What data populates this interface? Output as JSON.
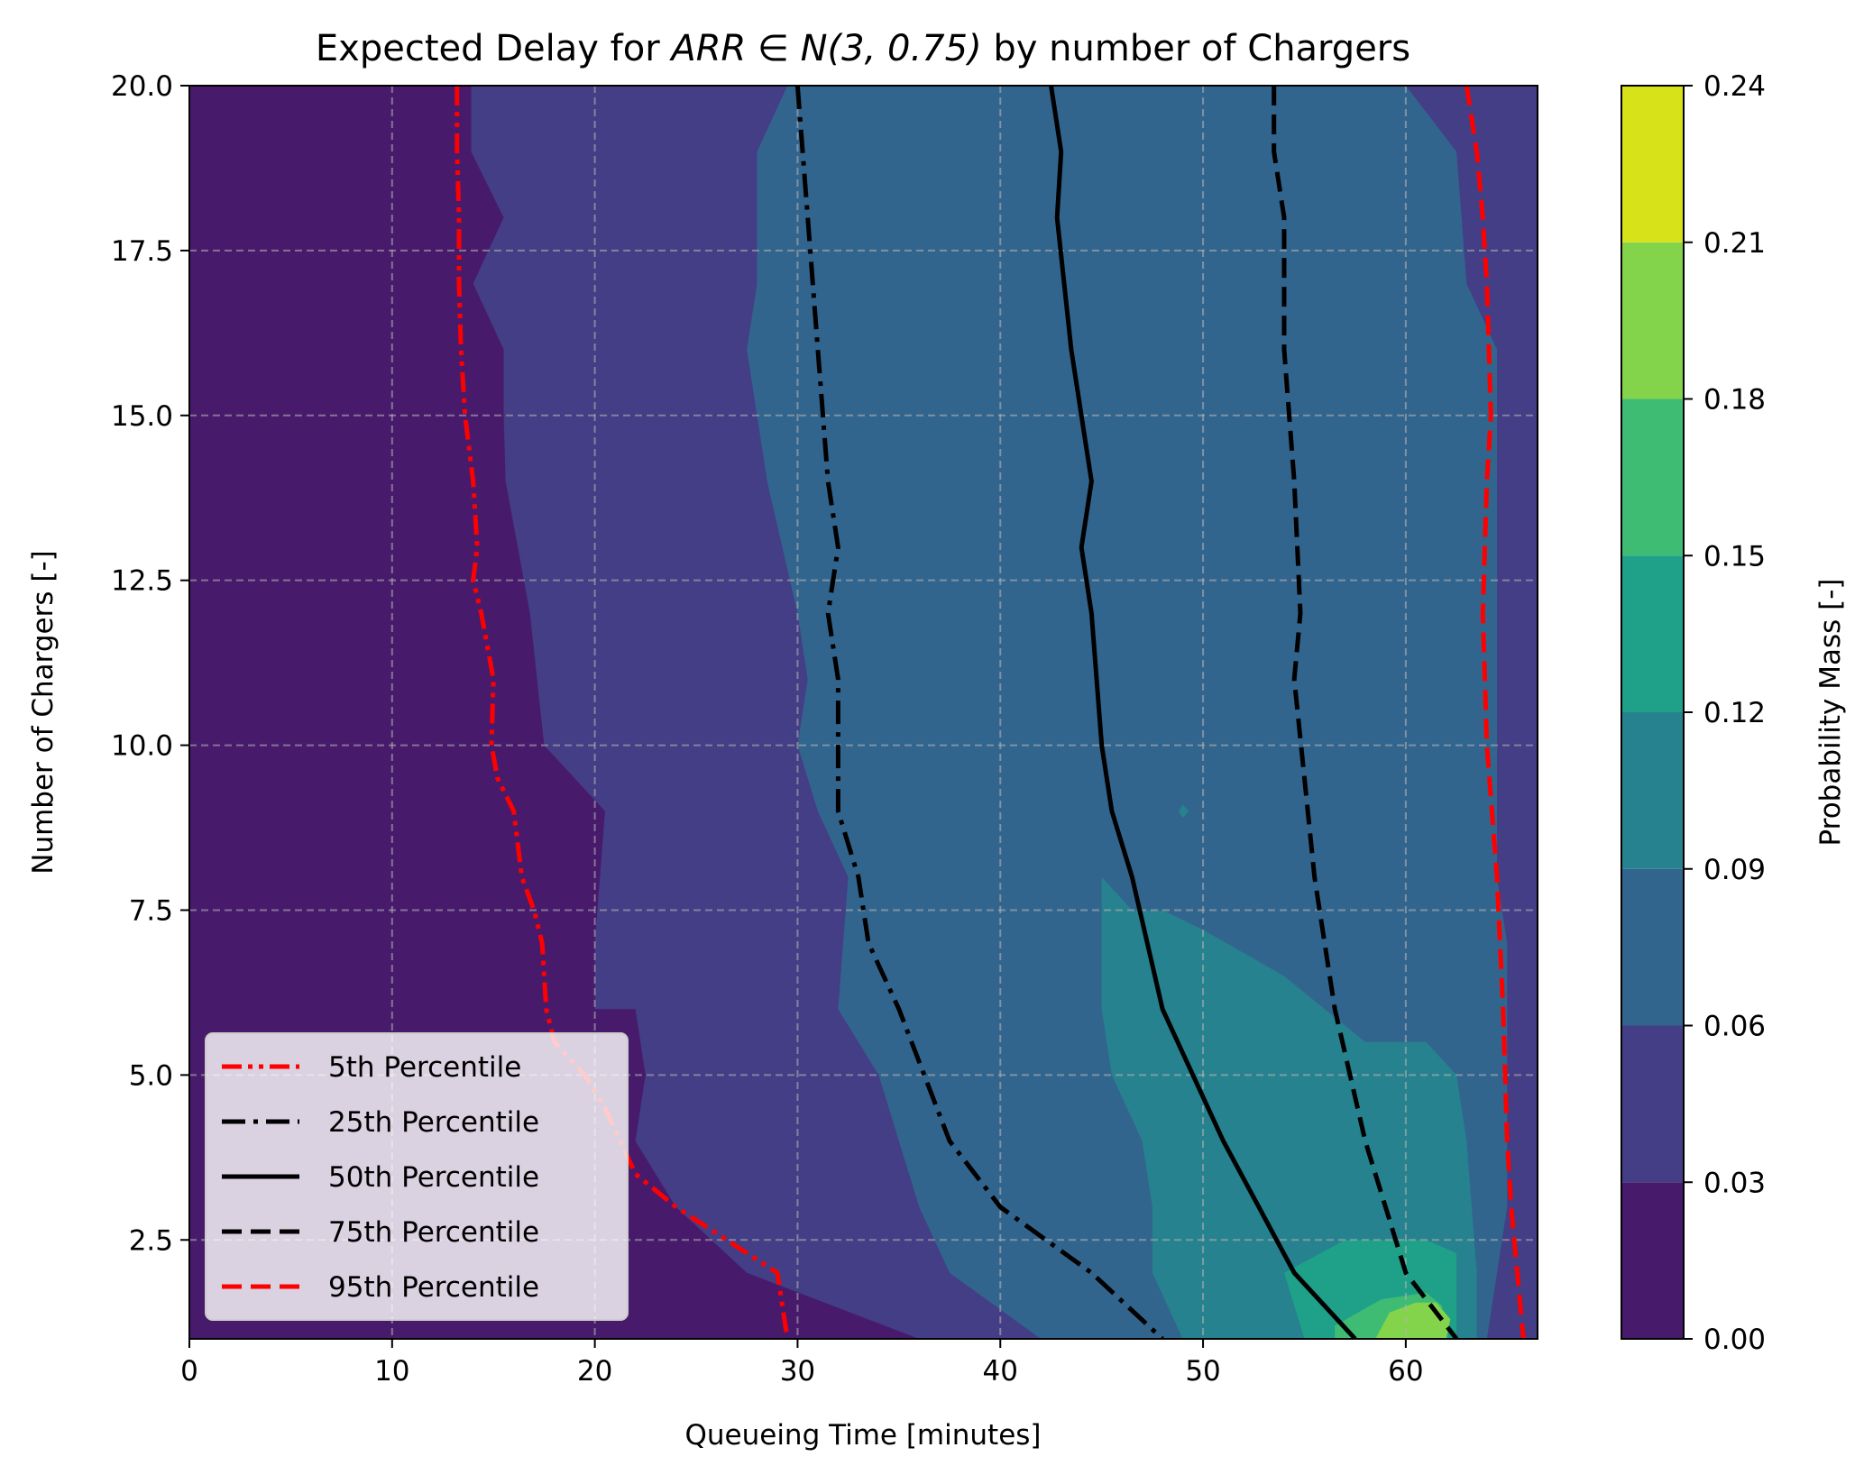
{
  "chart_data": {
    "type": "contour",
    "title_plain": "Expected Delay for ",
    "title_math": "ARR ∈ N(3, 0.75)",
    "title_suffix": " by number of Chargers",
    "xlabel": "Queueing Time [minutes]",
    "ylabel": "Number of Chargers [-]",
    "colorbar_label": "Probability Mass [-]",
    "xlim": [
      0,
      66.5
    ],
    "ylim": [
      1,
      20
    ],
    "xticks": [
      0,
      10,
      20,
      30,
      40,
      50,
      60
    ],
    "xtick_labels": [
      "0",
      "10",
      "20",
      "30",
      "40",
      "50",
      "60"
    ],
    "yticks": [
      2.5,
      5.0,
      7.5,
      10.0,
      12.5,
      15.0,
      17.5,
      20.0
    ],
    "ytick_labels": [
      "2.5",
      "5.0",
      "7.5",
      "10.0",
      "12.5",
      "15.0",
      "17.5",
      "20.0"
    ],
    "colorbar_ticks": [
      0.0,
      0.03,
      0.06,
      0.09,
      0.12,
      0.15,
      0.18,
      0.21,
      0.24
    ],
    "colorbar_tick_labels": [
      "0.00",
      "0.03",
      "0.06",
      "0.09",
      "0.12",
      "0.15",
      "0.18",
      "0.21",
      "0.24"
    ],
    "levels": [
      0.0,
      0.03,
      0.06,
      0.09,
      0.12,
      0.15,
      0.18,
      0.21,
      0.24
    ],
    "level_colors": [
      "#481a6c",
      "#433e85",
      "#32658e",
      "#26828e",
      "#1fa088",
      "#3fbc73",
      "#84d44b",
      "#d8e219"
    ],
    "grid": true,
    "legend_position": "lower-left",
    "regions": [
      {
        "level": 1,
        "points": [
          [
            13.9,
            20
          ],
          [
            13.9,
            19
          ],
          [
            15.5,
            18
          ],
          [
            14,
            17
          ],
          [
            15.5,
            16
          ],
          [
            15.5,
            15
          ],
          [
            15.6,
            14
          ],
          [
            16.8,
            12
          ],
          [
            17.5,
            10
          ],
          [
            20.5,
            9
          ],
          [
            20,
            7
          ],
          [
            20,
            6
          ],
          [
            22,
            6
          ],
          [
            22.5,
            5
          ],
          [
            22,
            4
          ],
          [
            24,
            3
          ],
          [
            27.5,
            2
          ],
          [
            36,
            1
          ],
          [
            66.5,
            1
          ],
          [
            66.5,
            20
          ]
        ]
      },
      {
        "level": 2,
        "points": [
          [
            29.5,
            20
          ],
          [
            28,
            19
          ],
          [
            28,
            17
          ],
          [
            27.5,
            16
          ],
          [
            28,
            15
          ],
          [
            28.5,
            14
          ],
          [
            30,
            12
          ],
          [
            30.5,
            11
          ],
          [
            30,
            10
          ],
          [
            31,
            9
          ],
          [
            32.5,
            8
          ],
          [
            32,
            6
          ],
          [
            34,
            5
          ],
          [
            35,
            4
          ],
          [
            36,
            3
          ],
          [
            37.5,
            2
          ],
          [
            42,
            1
          ],
          [
            64,
            1
          ],
          [
            65,
            3
          ],
          [
            65,
            7
          ],
          [
            64.5,
            8
          ],
          [
            64.5,
            13
          ],
          [
            64.5,
            16
          ],
          [
            63,
            17
          ],
          [
            62.5,
            19
          ],
          [
            60,
            20
          ]
        ]
      },
      {
        "level": 3,
        "points": [
          [
            45,
            8
          ],
          [
            46.5,
            7.5
          ],
          [
            48,
            7.5
          ],
          [
            50,
            7.2
          ],
          [
            54,
            6.5
          ],
          [
            58,
            5.5
          ],
          [
            61,
            5.5
          ],
          [
            62.5,
            5
          ],
          [
            63,
            4
          ],
          [
            63.5,
            2
          ],
          [
            63.5,
            1
          ],
          [
            49,
            1
          ],
          [
            47.5,
            2
          ],
          [
            47.5,
            3
          ],
          [
            47,
            4
          ],
          [
            45.5,
            5
          ],
          [
            45,
            6
          ]
        ]
      },
      {
        "level": 3,
        "points": [
          [
            48.8,
            9
          ],
          [
            49,
            9.1
          ],
          [
            49.3,
            9
          ],
          [
            49,
            8.9
          ]
        ]
      },
      {
        "level": 4,
        "points": [
          [
            54,
            2
          ],
          [
            57,
            2.5
          ],
          [
            61,
            2.5
          ],
          [
            62.5,
            2.3
          ],
          [
            62.5,
            1
          ],
          [
            55,
            1
          ]
        ]
      },
      {
        "level": 5,
        "points": [
          [
            56.5,
            1.2
          ],
          [
            58.8,
            1.6
          ],
          [
            61,
            1.7
          ],
          [
            61.8,
            1.5
          ],
          [
            61.8,
            1
          ],
          [
            56.5,
            1
          ]
        ]
      },
      {
        "level": 6,
        "points": [
          [
            58.5,
            1
          ],
          [
            59.2,
            1.4
          ],
          [
            60.5,
            1.55
          ],
          [
            61.5,
            1.55
          ],
          [
            62.2,
            1.3
          ],
          [
            62,
            1
          ]
        ]
      }
    ],
    "series": [
      {
        "name": "5th Percentile",
        "style": "dash-dot-dot",
        "color": "#ff0000",
        "x": [
          13.2,
          13.2,
          13.3,
          13.3,
          13.4,
          13.6,
          14.0,
          14.2,
          14.0,
          14.4,
          15.0,
          14.9,
          15.2,
          16.0,
          16.4,
          17.0,
          17.4,
          17.6,
          18.0,
          19.5,
          20.5,
          22.0,
          24.0,
          26.5,
          29.0,
          29.5
        ],
        "y": [
          20.0,
          19.0,
          18.0,
          17.0,
          16.0,
          15.0,
          14.0,
          13.0,
          12.5,
          12.0,
          11.0,
          10.0,
          9.5,
          9.0,
          8.0,
          7.5,
          7.0,
          6.0,
          5.5,
          5.0,
          4.5,
          3.5,
          3.0,
          2.5,
          2.0,
          1.0
        ]
      },
      {
        "name": "25th Percentile",
        "style": "dash-dot",
        "color": "#000000",
        "x": [
          30.0,
          30.5,
          31.0,
          31.5,
          32.0,
          31.5,
          32.0,
          32.0,
          32.0,
          33.0,
          33.5,
          35.0,
          37.5,
          40.0,
          44.5,
          48.0
        ],
        "y": [
          20.0,
          18.0,
          16.0,
          14.0,
          13.0,
          12.0,
          11.0,
          10.0,
          9.0,
          8.0,
          7.0,
          6.0,
          4.0,
          3.0,
          2.0,
          1.0
        ]
      },
      {
        "name": "50th Percentile",
        "style": "solid",
        "color": "#000000",
        "x": [
          42.5,
          43.0,
          42.8,
          43.5,
          44.5,
          44.0,
          44.5,
          45.0,
          45.5,
          46.5,
          48.0,
          51.0,
          54.5,
          57.5
        ],
        "y": [
          20.0,
          19.0,
          18.0,
          16.0,
          14.0,
          13.0,
          12.0,
          10.0,
          9.0,
          8.0,
          6.0,
          4.0,
          2.0,
          1.0
        ]
      },
      {
        "name": "75th Percentile",
        "style": "dashed",
        "color": "#000000",
        "x": [
          53.5,
          53.5,
          54.0,
          54.0,
          54.5,
          54.8,
          54.5,
          55.0,
          55.5,
          56.0,
          56.5,
          58.0,
          60.0,
          62.5
        ],
        "y": [
          20.0,
          19.0,
          18.0,
          16.0,
          14.0,
          12.0,
          11.0,
          9.5,
          8.0,
          7.0,
          6.0,
          4.0,
          2.0,
          1.0
        ]
      },
      {
        "name": "95th Percentile",
        "style": "dashed",
        "color": "#ff0000",
        "x": [
          63.0,
          63.5,
          63.8,
          64.0,
          64.2,
          64.0,
          63.8,
          64.0,
          64.5,
          64.8,
          65.0,
          65.2,
          65.5,
          65.8
        ],
        "y": [
          20.0,
          19.0,
          18.0,
          17.0,
          15.0,
          14.0,
          12.0,
          10.0,
          8.0,
          6.0,
          4.0,
          3.0,
          2.0,
          1.0
        ]
      }
    ]
  }
}
